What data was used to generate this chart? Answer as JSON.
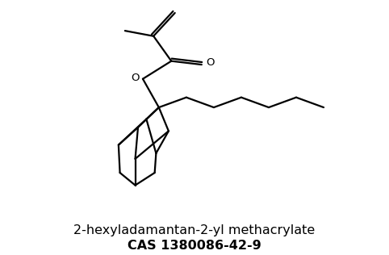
{
  "title_line1": "2-hexyladamantan-2-yl methacrylate",
  "title_line2": "CAS 1380086-42-9",
  "title_fontsize": 11.5,
  "bg_color": "#ffffff",
  "line_color": "#000000",
  "line_width": 1.6,
  "figsize": [
    4.82,
    3.16
  ],
  "dpi": 100,
  "xlim": [
    0,
    10
  ],
  "ylim": [
    0,
    7
  ]
}
